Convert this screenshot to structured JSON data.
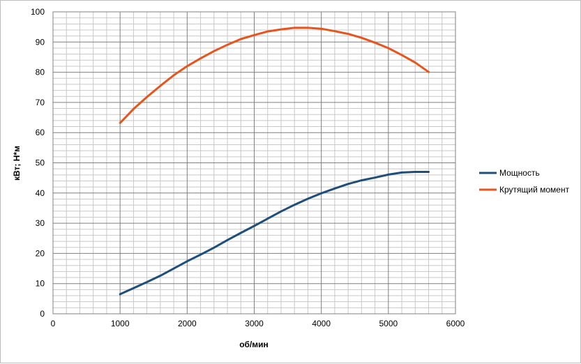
{
  "chart_data": {
    "type": "line",
    "xlabel": "об/мин",
    "ylabel": "кВт; Н*м",
    "xlim": [
      0,
      6000
    ],
    "ylim": [
      0,
      100
    ],
    "x_ticks": [
      "0",
      "1000",
      "2000",
      "3000",
      "4000",
      "5000",
      "6000"
    ],
    "y_ticks": [
      "0",
      "10",
      "20",
      "30",
      "40",
      "50",
      "60",
      "70",
      "80",
      "90",
      "100"
    ],
    "x_tick_values": [
      0,
      1000,
      2000,
      3000,
      4000,
      5000,
      6000
    ],
    "y_tick_values": [
      0,
      10,
      20,
      30,
      40,
      50,
      60,
      70,
      80,
      90,
      100
    ],
    "grid": "major and minor",
    "legend_position": "right",
    "series": [
      {
        "name": "Мощность",
        "color": "#1f4e79",
        "x": [
          1000,
          1200,
          1400,
          1600,
          1800,
          2000,
          2200,
          2400,
          2600,
          2800,
          3000,
          3200,
          3400,
          3600,
          3800,
          4000,
          4200,
          4400,
          4600,
          4800,
          5000,
          5200,
          5400,
          5600
        ],
        "y": [
          6.5,
          8.5,
          10.5,
          12.6,
          15.0,
          17.4,
          19.6,
          21.9,
          24.4,
          26.8,
          29.1,
          31.5,
          33.9,
          36.1,
          38.1,
          39.9,
          41.5,
          43.0,
          44.2,
          45.1,
          46.1,
          46.8,
          47.0,
          47.0
        ]
      },
      {
        "name": "Крутящий момент",
        "color": "#e8541e",
        "x": [
          1000,
          1200,
          1400,
          1600,
          1800,
          2000,
          2200,
          2400,
          2600,
          2800,
          3000,
          3200,
          3400,
          3600,
          3800,
          4000,
          4200,
          4400,
          4600,
          4800,
          5000,
          5200,
          5400,
          5600
        ],
        "y": [
          63.2,
          67.8,
          71.8,
          75.5,
          79.0,
          82.0,
          84.6,
          87.0,
          89.1,
          91.0,
          92.3,
          93.5,
          94.2,
          94.7,
          94.7,
          94.4,
          93.6,
          92.7,
          91.4,
          89.8,
          88.0,
          85.7,
          83.2,
          80.1
        ]
      }
    ]
  }
}
